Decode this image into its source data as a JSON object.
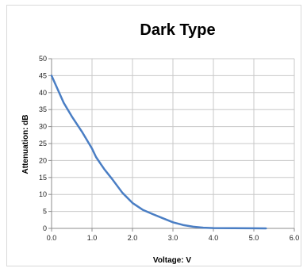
{
  "chart_data": {
    "type": "line",
    "title": "Dark Type",
    "xlabel": "Voltage: V",
    "ylabel": "Attenuation: dB",
    "xlim": [
      0,
      6
    ],
    "ylim": [
      0,
      50
    ],
    "x_ticks": [
      "0.0",
      "1.0",
      "2.0",
      "3.0",
      "4.0",
      "5.0",
      "6.0"
    ],
    "y_ticks": [
      "0",
      "5",
      "10",
      "15",
      "20",
      "25",
      "30",
      "35",
      "40",
      "45",
      "50"
    ],
    "grid": true,
    "series": [
      {
        "color": "#4a7ec4",
        "x": [
          0.0,
          0.15,
          0.3,
          0.5,
          0.75,
          1.0,
          1.1,
          1.3,
          1.5,
          1.75,
          2.0,
          2.25,
          2.5,
          2.75,
          3.0,
          3.25,
          3.5,
          3.75,
          4.0,
          4.5,
          5.0,
          5.3
        ],
        "y": [
          45,
          41,
          37,
          33,
          28.5,
          23.5,
          21,
          17.5,
          14.5,
          10.5,
          7.5,
          5.5,
          4.2,
          3,
          1.8,
          1,
          0.5,
          0.2,
          0.1,
          0.05,
          0.02,
          0
        ]
      }
    ]
  }
}
